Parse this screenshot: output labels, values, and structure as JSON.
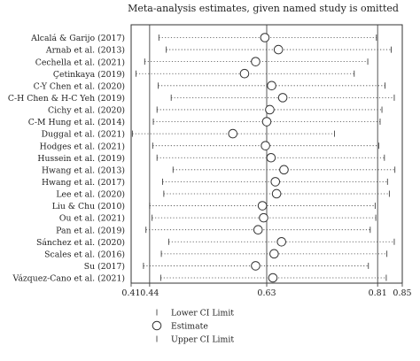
{
  "chart_data": {
    "type": "forest",
    "title": "Meta-analysis estimates, given named study is omitted",
    "xlim": [
      0.41,
      0.85
    ],
    "x_ticks": [
      0.41,
      0.44,
      0.63,
      0.81,
      0.85
    ],
    "x_tick_labels": [
      "0.41",
      "0.44",
      "0.63",
      "0.81",
      "0.85"
    ],
    "reference_lines": [
      0.44,
      0.63,
      0.81
    ],
    "studies": [
      {
        "name": "Alcalá & Garijo (2017)",
        "lower": 0.455,
        "estimate": 0.627,
        "upper": 0.808
      },
      {
        "name": "Arnab et al. (2013)",
        "lower": 0.467,
        "estimate": 0.649,
        "upper": 0.832
      },
      {
        "name": "Cechella et al. (2021)",
        "lower": 0.432,
        "estimate": 0.612,
        "upper": 0.794
      },
      {
        "name": "Çetinkaya (2019)",
        "lower": 0.418,
        "estimate": 0.594,
        "upper": 0.772
      },
      {
        "name": "C-Y Chen et al. (2020)",
        "lower": 0.454,
        "estimate": 0.638,
        "upper": 0.822
      },
      {
        "name": "C-H Chen & H-C Yeh (2019)",
        "lower": 0.475,
        "estimate": 0.656,
        "upper": 0.837
      },
      {
        "name": "Cichy et al. (2020)",
        "lower": 0.452,
        "estimate": 0.635,
        "upper": 0.817
      },
      {
        "name": "C-M Hung et al. (2014)",
        "lower": 0.446,
        "estimate": 0.63,
        "upper": 0.814
      },
      {
        "name": "Duggal et al. (2021)",
        "lower": 0.412,
        "estimate": 0.575,
        "upper": 0.74
      },
      {
        "name": "Hodges et al. (2021)",
        "lower": 0.445,
        "estimate": 0.628,
        "upper": 0.812
      },
      {
        "name": "Hussein et al. (2019)",
        "lower": 0.452,
        "estimate": 0.637,
        "upper": 0.821
      },
      {
        "name": "Hwang et al. (2013)",
        "lower": 0.478,
        "estimate": 0.658,
        "upper": 0.838
      },
      {
        "name": "Hwang et al. (2017)",
        "lower": 0.461,
        "estimate": 0.644,
        "upper": 0.826
      },
      {
        "name": "Lee et al. (2020)",
        "lower": 0.463,
        "estimate": 0.646,
        "upper": 0.829
      },
      {
        "name": "Liu & Chu (2010)",
        "lower": 0.44,
        "estimate": 0.623,
        "upper": 0.806
      },
      {
        "name": "Ou et al. (2021)",
        "lower": 0.444,
        "estimate": 0.625,
        "upper": 0.807
      },
      {
        "name": "Pan et al. (2019)",
        "lower": 0.434,
        "estimate": 0.616,
        "upper": 0.798
      },
      {
        "name": "Sánchez et al. (2020)",
        "lower": 0.471,
        "estimate": 0.654,
        "upper": 0.837
      },
      {
        "name": "Scales et al. (2016)",
        "lower": 0.459,
        "estimate": 0.642,
        "upper": 0.825
      },
      {
        "name": "Su (2017)",
        "lower": 0.43,
        "estimate": 0.612,
        "upper": 0.795
      },
      {
        "name": "Vázquez-Cano et al. (2021)",
        "lower": 0.458,
        "estimate": 0.64,
        "upper": 0.824
      }
    ],
    "legend": {
      "placement": "bottom",
      "items": [
        {
          "symbol": "tick",
          "label": "Lower CI Limit"
        },
        {
          "symbol": "circle",
          "label": "Estimate"
        },
        {
          "symbol": "tick",
          "label": "Upper CI Limit"
        }
      ]
    },
    "colors": {
      "line": "#444444",
      "marker": "#333333",
      "text": "#222222"
    }
  }
}
